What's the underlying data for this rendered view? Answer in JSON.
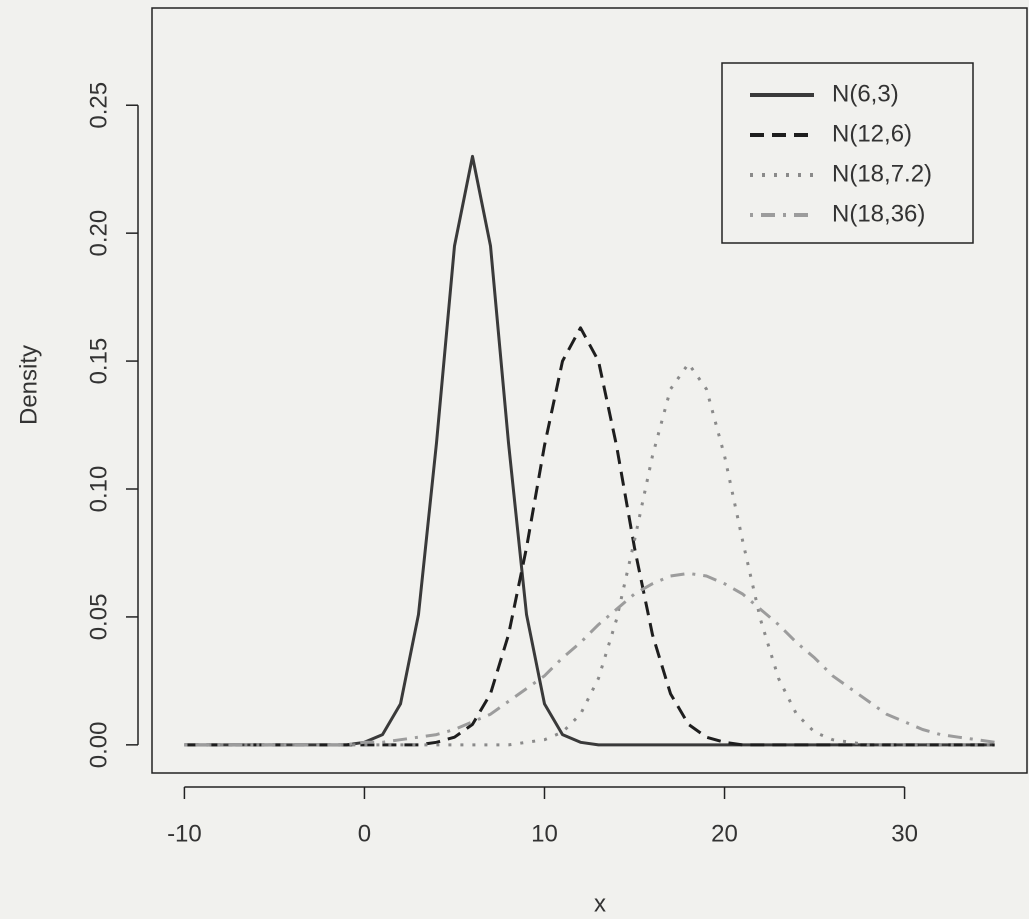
{
  "chart_data": {
    "type": "line",
    "xlabel": "x",
    "ylabel": "Density",
    "x": [
      -10,
      -9,
      -8,
      -7,
      -6,
      -5,
      -4,
      -3,
      -2,
      -1,
      0,
      1,
      2,
      3,
      4,
      5,
      6,
      7,
      8,
      9,
      10,
      11,
      12,
      13,
      14,
      15,
      16,
      17,
      18,
      19,
      20,
      21,
      22,
      23,
      24,
      25,
      26,
      27,
      28,
      29,
      30,
      31,
      32,
      33,
      34,
      35
    ],
    "series": [
      {
        "name": "N(6,3)",
        "color": "#3a3a3a",
        "values": [
          0,
          0,
          0,
          0,
          0,
          0,
          0,
          0,
          0,
          0,
          0.001,
          0.004,
          0.016,
          0.051,
          0.118,
          0.195,
          0.23,
          0.195,
          0.118,
          0.051,
          0.016,
          0.004,
          0.001,
          0,
          0,
          0,
          0,
          0,
          0,
          0,
          0,
          0,
          0,
          0,
          0,
          0,
          0,
          0,
          0,
          0,
          0,
          0,
          0,
          0,
          0,
          0
        ]
      },
      {
        "name": "N(12,6)",
        "color": "#1e1e1e",
        "values": [
          0,
          0,
          0,
          0,
          0,
          0,
          0,
          0,
          0,
          0,
          0,
          0,
          0,
          0,
          0.001,
          0.003,
          0.008,
          0.02,
          0.043,
          0.077,
          0.117,
          0.15,
          0.163,
          0.15,
          0.117,
          0.077,
          0.043,
          0.02,
          0.008,
          0.003,
          0.001,
          0,
          0,
          0,
          0,
          0,
          0,
          0,
          0,
          0,
          0,
          0,
          0,
          0,
          0,
          0
        ]
      },
      {
        "name": "N(18,7.2)",
        "color": "#8a8a8a",
        "values": [
          0,
          0,
          0,
          0,
          0,
          0,
          0,
          0,
          0,
          0,
          0,
          0,
          0,
          0,
          0,
          0,
          0,
          0,
          0,
          0.001,
          0.002,
          0.005,
          0.012,
          0.026,
          0.049,
          0.08,
          0.113,
          0.139,
          0.149,
          0.139,
          0.113,
          0.08,
          0.049,
          0.026,
          0.012,
          0.005,
          0.002,
          0.001,
          0,
          0,
          0,
          0,
          0,
          0,
          0,
          0
        ]
      },
      {
        "name": "N(18,36)",
        "color": "#9c9c9c",
        "values": [
          0,
          0,
          0,
          0,
          0,
          0,
          0,
          0,
          0,
          0,
          0.001,
          0.001,
          0.002,
          0.003,
          0.004,
          0.006,
          0.009,
          0.012,
          0.017,
          0.022,
          0.027,
          0.034,
          0.04,
          0.047,
          0.053,
          0.059,
          0.063,
          0.066,
          0.067,
          0.066,
          0.063,
          0.059,
          0.053,
          0.047,
          0.04,
          0.034,
          0.027,
          0.022,
          0.017,
          0.012,
          0.009,
          0.006,
          0.004,
          0.003,
          0.002,
          0.001
        ]
      }
    ],
    "xlim": [
      -11.8,
      36.8
    ],
    "xticks": [
      -10,
      0,
      10,
      20,
      30
    ],
    "ylim": [
      -0.011,
      0.288
    ],
    "yticks": [
      {
        "value": 0,
        "label": "0.00"
      },
      0.05,
      {
        "value": 0.1,
        "label": "0.10"
      },
      0.15,
      {
        "value": 0.2,
        "label": "0.20"
      },
      0.25
    ],
    "legend": "top-right"
  }
}
